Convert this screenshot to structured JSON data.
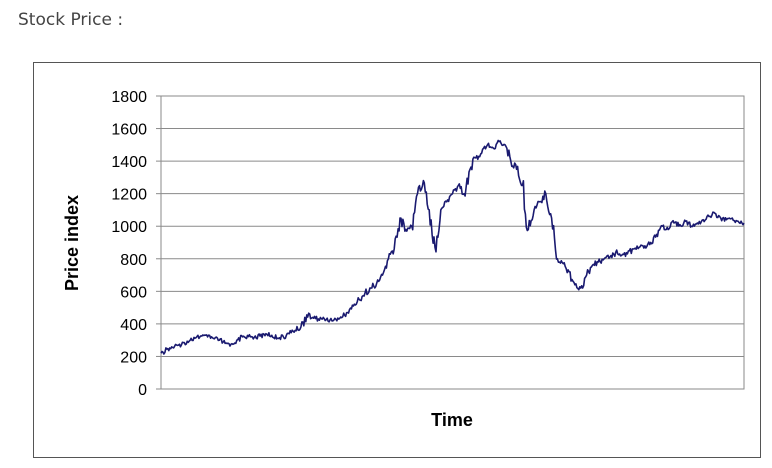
{
  "page": {
    "heading": "Stock Price :"
  },
  "colors": {
    "line": "#1a1a70",
    "grid": "#8a8a8a",
    "frame": "#555555"
  },
  "chart_data": {
    "type": "line",
    "title": "",
    "xlabel": "Time",
    "ylabel": "Price index",
    "ylim": [
      0,
      1800
    ],
    "yticks": [
      0,
      200,
      400,
      600,
      800,
      1000,
      1200,
      1400,
      1600,
      1800
    ],
    "grid": true,
    "x_tick_labels": false,
    "series": [
      {
        "x": [
          0,
          1,
          2,
          3,
          4,
          5,
          6,
          7,
          8,
          9,
          10,
          11,
          12,
          13,
          14,
          15,
          16,
          17,
          18,
          19,
          20,
          21,
          22,
          23,
          24,
          25,
          26,
          27,
          28,
          29,
          30,
          31,
          32,
          33,
          34,
          35,
          36,
          37,
          38,
          39,
          40,
          41,
          42,
          43,
          44,
          45,
          46,
          47,
          48,
          49,
          50,
          51,
          52,
          53,
          54,
          55,
          56,
          57,
          58,
          59,
          60,
          61,
          62,
          63,
          64,
          65,
          66,
          67,
          68,
          69,
          70,
          71,
          72,
          73,
          74,
          75,
          76,
          77,
          78,
          79,
          80,
          81,
          82,
          83,
          84,
          85,
          86,
          87,
          88,
          89,
          90,
          91,
          92,
          93,
          94,
          95,
          96,
          97,
          98,
          99,
          100
        ],
        "values": [
          220,
          245,
          255,
          270,
          285,
          300,
          315,
          325,
          320,
          310,
          300,
          280,
          275,
          300,
          320,
          322,
          318,
          325,
          340,
          330,
          312,
          320,
          340,
          360,
          380,
          455,
          440,
          430,
          432,
          425,
          428,
          438,
          470,
          510,
          550,
          590,
          620,
          650,
          700,
          800,
          860,
          1050,
          980,
          1000,
          1200,
          1280,
          1100,
          870,
          1100,
          1150,
          1200,
          1250,
          1200,
          1350,
          1420,
          1450,
          1500,
          1480,
          1520,
          1500,
          1400,
          1350,
          1250,
          980,
          1100,
          1150,
          1200,
          1050,
          800,
          770,
          720,
          640,
          620,
          700,
          760,
          780,
          800,
          810,
          840,
          820,
          830,
          860,
          870,
          880,
          900,
          950,
          1000,
          980,
          1020,
          1010,
          1030,
          1000,
          1020,
          1040,
          1060,
          1080,
          1050,
          1040,
          1050,
          1030,
          1020
        ]
      }
    ]
  }
}
